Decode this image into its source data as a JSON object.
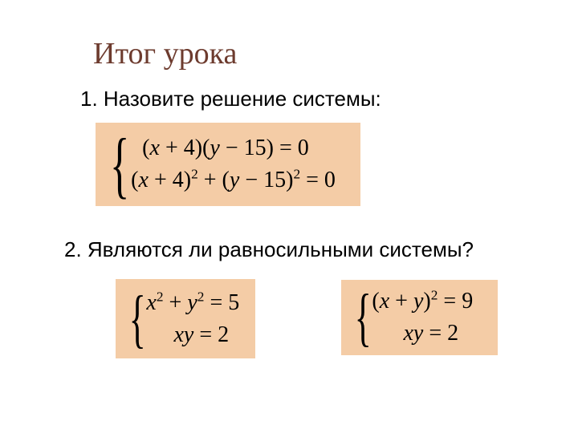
{
  "slide": {
    "title": "Итог урока",
    "title_color": "#6d3b2e",
    "title_fontsize": 38,
    "background_color": "#ffffff"
  },
  "questions": {
    "q1": "1. Назовите решение системы:",
    "q2": "2. Являются ли равносильными системы?",
    "fontsize": 26,
    "color": "#000000",
    "fontfamily": "Arial"
  },
  "math_boxes": {
    "box_background": "#f4cca6",
    "math_color": "#000000",
    "math_fontsize": 28,
    "math_fontfamily": "Times New Roman"
  },
  "system1": {
    "type": "equation_system",
    "eq1_raw": "(x + 4)(y − 15) = 0",
    "eq2_raw": "(x + 4)² + (y − 15)² = 0",
    "eq1": {
      "lhs_factors": [
        "(x + 4)",
        "(y − 15)"
      ],
      "rhs": "0"
    },
    "eq2": {
      "terms": [
        "(x + 4)²",
        "(y − 15)²"
      ],
      "rhs": "0"
    }
  },
  "system2a": {
    "type": "equation_system",
    "eq1_raw": "x² + y² = 5",
    "eq2_raw": "xy = 2",
    "eq1": {
      "lhs": "x² + y²",
      "rhs": "5"
    },
    "eq2": {
      "lhs": "xy",
      "rhs": "2"
    }
  },
  "system2b": {
    "type": "equation_system",
    "eq1_raw": "(x + y)² = 9",
    "eq2_raw": "xy = 2",
    "eq1": {
      "lhs": "(x + y)²",
      "rhs": "9"
    },
    "eq2": {
      "lhs": "xy",
      "rhs": "2"
    }
  }
}
